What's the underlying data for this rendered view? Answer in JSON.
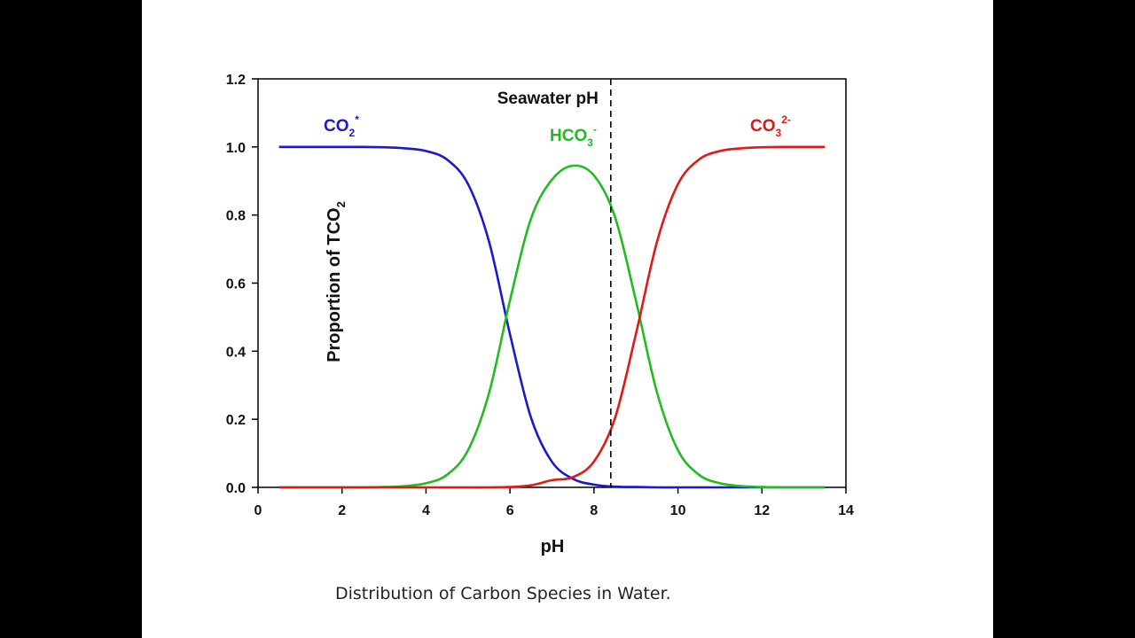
{
  "caption": "Distribution of Carbon Species in Water.",
  "chart_data": {
    "type": "line",
    "xlabel": "pH",
    "ylabel_main": "Proportion of TCO",
    "ylabel_sub": "2",
    "xlim": [
      0,
      14
    ],
    "ylim": [
      0,
      1.2
    ],
    "x_ticks": [
      "0",
      "2",
      "4",
      "6",
      "8",
      "10",
      "12",
      "14"
    ],
    "y_ticks": [
      "0.0",
      "0.2",
      "0.4",
      "0.6",
      "0.8",
      "1.0",
      "1.2"
    ],
    "grid": false,
    "x": [
      0.5,
      1.0,
      1.5,
      2.0,
      2.5,
      3.0,
      3.5,
      4.0,
      4.5,
      5.0,
      5.5,
      6.0,
      6.5,
      7.0,
      7.5,
      8.0,
      8.5,
      9.0,
      9.5,
      10.0,
      10.5,
      11.0,
      11.5,
      12.0,
      12.5,
      13.0,
      13.5
    ],
    "series": [
      {
        "name": "CO",
        "sub": "2",
        "sup": "*",
        "color": "#1a1acc",
        "values": [
          1.0,
          1.0,
          1.0,
          1.0,
          1.0,
          0.999,
          0.996,
          0.988,
          0.963,
          0.891,
          0.722,
          0.45,
          0.205,
          0.075,
          0.025,
          0.008,
          0.002,
          0.001,
          0.0,
          0.0,
          0.0,
          0.0,
          0.0,
          0.0,
          0.0,
          0.0,
          0.0
        ]
      },
      {
        "name": "HCO",
        "sub": "3",
        "sup": "-",
        "color": "#22bb22",
        "values": [
          0.0,
          0.0,
          0.0,
          0.0,
          0.0,
          0.001,
          0.004,
          0.012,
          0.037,
          0.109,
          0.277,
          0.549,
          0.789,
          0.904,
          0.945,
          0.916,
          0.795,
          0.548,
          0.279,
          0.109,
          0.037,
          0.012,
          0.004,
          0.001,
          0.0,
          0.0,
          0.0
        ]
      },
      {
        "name": "CO",
        "sub": "3",
        "sup": "2-",
        "color": "#e01818",
        "values": [
          0.0,
          0.0,
          0.0,
          0.0,
          0.0,
          0.0,
          0.0,
          0.0,
          0.0,
          0.0,
          0.0,
          0.001,
          0.006,
          0.021,
          0.03,
          0.076,
          0.203,
          0.451,
          0.721,
          0.891,
          0.963,
          0.988,
          0.996,
          0.999,
          1.0,
          1.0,
          1.0
        ]
      }
    ],
    "reference_line": {
      "x": 8.4,
      "label": "Seawater pH",
      "style": "dashed"
    }
  }
}
